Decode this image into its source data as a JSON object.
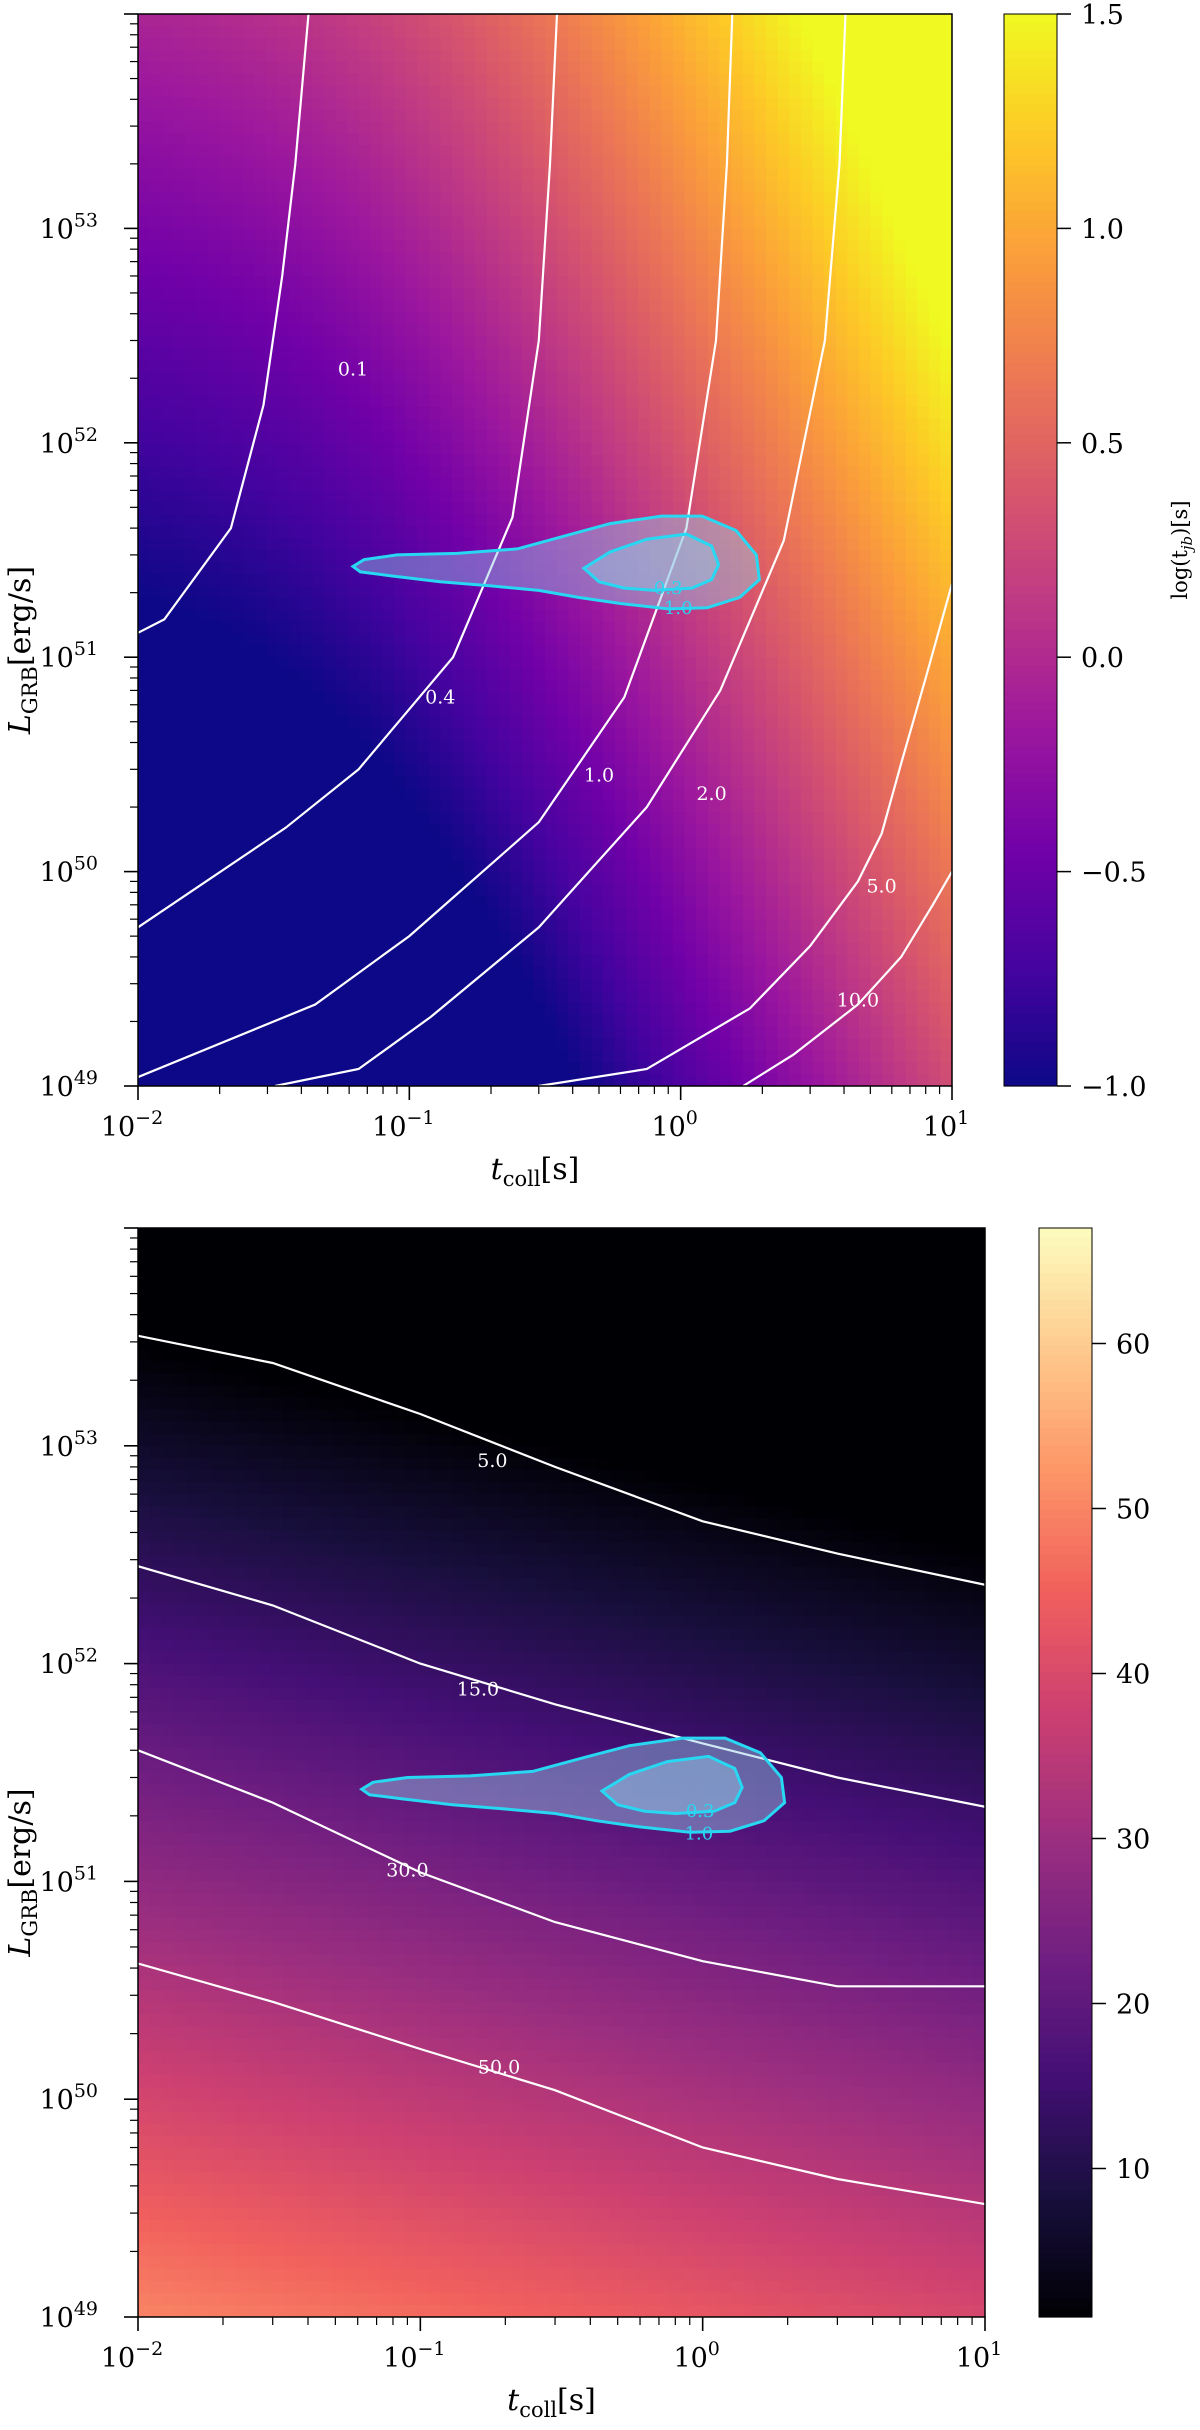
{
  "chart_data": [
    {
      "type": "heatmap",
      "xlabel_main": "t",
      "xlabel_sub": "coll",
      "xlabel_unit": "[s]",
      "ylabel_main": "L",
      "ylabel_sub": "GRB",
      "ylabel_unit": "[erg/s]",
      "x_scale": "log",
      "y_scale": "log",
      "xlim": [
        0.01,
        10
      ],
      "ylim": [
        1e+49,
        1e+54
      ],
      "x_ticks": [
        {
          "exp": "−2",
          "value": 0.01
        },
        {
          "exp": "−1",
          "value": 0.1
        },
        {
          "exp": "0",
          "value": 1
        },
        {
          "exp": "1",
          "value": 10
        }
      ],
      "y_ticks": [
        {
          "exp": "49",
          "value": 1e+49
        },
        {
          "exp": "50",
          "value": 1e+50
        },
        {
          "exp": "51",
          "value": 1e+51
        },
        {
          "exp": "52",
          "value": 1e+52
        },
        {
          "exp": "53",
          "value": 1e+53
        }
      ],
      "tick_base": "10",
      "colormap": "plasma",
      "colormap_stops": [
        "#0d0887",
        "#46039f",
        "#7201a8",
        "#9c179e",
        "#bd3786",
        "#d8576b",
        "#ed7953",
        "#fb9f3a",
        "#fdca26",
        "#f0f921"
      ],
      "colorbar": {
        "label": "log(t_jb)[s]",
        "label_main": "log(t",
        "label_sub": "jb",
        "label_tail": ")[s]",
        "range": [
          -1.0,
          1.5
        ],
        "ticks": [
          {
            "label": "1.5",
            "value": 1.5
          },
          {
            "label": "1.0",
            "value": 1.0
          },
          {
            "label": "0.5",
            "value": 0.5
          },
          {
            "label": "0.0",
            "value": 0.0
          },
          {
            "label": "−0.5",
            "value": -0.5
          },
          {
            "label": "−1.0",
            "value": -1.0
          }
        ]
      },
      "contours": [
        {
          "label": "0.1",
          "label_at": [
            0.062,
            2.2e+52
          ],
          "points": [
            [
              0.0425,
              1e+54
            ],
            [
              0.038,
              2e+53
            ],
            [
              0.034,
              6e+52
            ],
            [
              0.029,
              1.5e+52
            ],
            [
              0.022,
              4e+51
            ],
            [
              0.0125,
              1.5e+51
            ],
            [
              0.01,
              1.3e+51
            ]
          ]
        },
        {
          "label": "0.4",
          "label_at": [
            0.13,
            6.5e+50
          ],
          "points": [
            [
              0.35,
              1e+54
            ],
            [
              0.33,
              2e+53
            ],
            [
              0.3,
              3e+52
            ],
            [
              0.24,
              4.5e+51
            ],
            [
              0.145,
              1e+51
            ],
            [
              0.065,
              3e+50
            ],
            [
              0.035,
              1.6e+50
            ],
            [
              0.01,
              5.5e+49
            ]
          ]
        },
        {
          "label": "1.0",
          "label_at": [
            0.5,
            2.8e+50
          ],
          "points": [
            [
              1.55,
              1e+54
            ],
            [
              1.48,
              2e+53
            ],
            [
              1.35,
              3e+52
            ],
            [
              1.05,
              4e+51
            ],
            [
              0.62,
              6.5e+50
            ],
            [
              0.3,
              1.7e+50
            ],
            [
              0.1,
              5e+49
            ],
            [
              0.045,
              2.4e+49
            ],
            [
              0.01,
              1.1e+49
            ]
          ]
        },
        {
          "label": "2.0",
          "label_at": [
            1.3,
            2.3e+50
          ],
          "points": [
            [
              4.05,
              1e+54
            ],
            [
              3.85,
              2e+53
            ],
            [
              3.4,
              3e+52
            ],
            [
              2.4,
              3.5e+51
            ],
            [
              1.4,
              7e+50
            ],
            [
              0.75,
              2e+50
            ],
            [
              0.3,
              5.5e+49
            ],
            [
              0.12,
              2.1e+49
            ],
            [
              0.065,
              1.2e+49
            ],
            [
              0.032,
              1e+49
            ]
          ]
        },
        {
          "label": "5.0",
          "label_at": [
            5.5,
            8.5e+49
          ],
          "points": [
            [
              10,
              2.2e+51
            ],
            [
              8,
              8e+50
            ],
            [
              6.5,
              3.2e+50
            ],
            [
              5.5,
              1.5e+50
            ],
            [
              4.5,
              9e+49
            ],
            [
              3,
              4.5e+49
            ],
            [
              1.8,
              2.3e+49
            ],
            [
              0.75,
              1.2e+49
            ],
            [
              0.3,
              1e+49
            ]
          ]
        },
        {
          "label": "10.0",
          "label_at": [
            4.5,
            2.5e+49
          ],
          "points": [
            [
              10,
              1e+50
            ],
            [
              8.5,
              7e+49
            ],
            [
              6.5,
              4e+49
            ],
            [
              4.5,
              2.4e+49
            ],
            [
              2.6,
              1.4e+49
            ],
            [
              1.7,
              1e+49
            ]
          ]
        }
      ],
      "region_contours": [
        {
          "label": "0.3",
          "label_at": [
            0.9,
            2.1e+51
          ],
          "points": [
            [
              0.44,
              2.6e+51
            ],
            [
              0.5,
              2.25e+51
            ],
            [
              0.62,
              2.1e+51
            ],
            [
              0.8,
              2.05e+51
            ],
            [
              1.1,
              2.1e+51
            ],
            [
              1.3,
              2.3e+51
            ],
            [
              1.38,
              2.7e+51
            ],
            [
              1.3,
              3.3e+51
            ],
            [
              1.05,
              3.75e+51
            ],
            [
              0.75,
              3.55e+51
            ],
            [
              0.55,
              3.1e+51
            ],
            [
              0.44,
              2.6e+51
            ]
          ]
        },
        {
          "label": "1.0",
          "label_at": [
            0.98,
            1.7e+51
          ],
          "points": [
            [
              0.066,
              2.5e+51
            ],
            [
              0.085,
              2.4e+51
            ],
            [
              0.13,
              2.25e+51
            ],
            [
              0.2,
              2.15e+51
            ],
            [
              0.3,
              2.05e+51
            ],
            [
              0.42,
              1.9e+51
            ],
            [
              0.6,
              1.78e+51
            ],
            [
              0.9,
              1.68e+51
            ],
            [
              1.25,
              1.7e+51
            ],
            [
              1.65,
              1.9e+51
            ],
            [
              1.95,
              2.3e+51
            ],
            [
              1.9,
              3e+51
            ],
            [
              1.6,
              3.9e+51
            ],
            [
              1.2,
              4.55e+51
            ],
            [
              0.85,
              4.55e+51
            ],
            [
              0.55,
              4.2e+51
            ],
            [
              0.38,
              3.7e+51
            ],
            [
              0.25,
              3.2e+51
            ],
            [
              0.15,
              3.05e+51
            ],
            [
              0.09,
              3e+51
            ],
            [
              0.068,
              2.85e+51
            ],
            [
              0.062,
              2.65e+51
            ],
            [
              0.066,
              2.5e+51
            ]
          ]
        }
      ]
    },
    {
      "type": "heatmap",
      "xlabel_main": "t",
      "xlabel_sub": "coll",
      "xlabel_unit": "[s]",
      "ylabel_main": "L",
      "ylabel_sub": "GRB",
      "ylabel_unit": "[erg/s]",
      "x_scale": "log",
      "y_scale": "log",
      "xlim": [
        0.01,
        10
      ],
      "ylim": [
        1e+49,
        1e+54
      ],
      "x_ticks": [
        {
          "exp": "−2",
          "value": 0.01
        },
        {
          "exp": "−1",
          "value": 0.1
        },
        {
          "exp": "0",
          "value": 1
        },
        {
          "exp": "1",
          "value": 10
        }
      ],
      "y_ticks": [
        {
          "exp": "49",
          "value": 1e+49
        },
        {
          "exp": "50",
          "value": 1e+50
        },
        {
          "exp": "51",
          "value": 1e+51
        },
        {
          "exp": "52",
          "value": 1e+52
        },
        {
          "exp": "53",
          "value": 1e+53
        }
      ],
      "tick_base": "10",
      "colormap": "magma",
      "colormap_stops": [
        "#000004",
        "#180f3d",
        "#440f76",
        "#721f81",
        "#9e2f7f",
        "#cd4071",
        "#f1605d",
        "#fd9668",
        "#feca8d",
        "#fcfdbf"
      ],
      "colorbar": {
        "label": "ε_jb[%]",
        "label_main": "ε",
        "label_sub": "jb",
        "label_tail": "[%]",
        "range": [
          1,
          67
        ],
        "ticks": [
          {
            "label": "60",
            "value": 60
          },
          {
            "label": "50",
            "value": 50
          },
          {
            "label": "40",
            "value": 40
          },
          {
            "label": "30",
            "value": 30
          },
          {
            "label": "20",
            "value": 20
          },
          {
            "label": "10",
            "value": 10
          }
        ]
      },
      "contours": [
        {
          "label": "5.0",
          "label_at": [
            0.18,
            8.5e+52
          ],
          "points": [
            [
              0.01,
              3.2e+53
            ],
            [
              0.03,
              2.4e+53
            ],
            [
              0.1,
              1.4e+53
            ],
            [
              0.3,
              8e+52
            ],
            [
              1,
              4.5e+52
            ],
            [
              3,
              3.2e+52
            ],
            [
              10,
              2.3e+52
            ]
          ]
        },
        {
          "label": "15.0",
          "label_at": [
            0.16,
            7.6e+51
          ],
          "points": [
            [
              0.01,
              2.8e+52
            ],
            [
              0.03,
              1.85e+52
            ],
            [
              0.1,
              1e+52
            ],
            [
              0.3,
              6.5e+51
            ],
            [
              1,
              4.3e+51
            ],
            [
              3,
              3e+51
            ],
            [
              10,
              2.2e+51
            ]
          ]
        },
        {
          "label": "30.0",
          "label_at": [
            0.09,
            1.12e+51
          ],
          "points": [
            [
              0.01,
              4e+51
            ],
            [
              0.03,
              2.3e+51
            ],
            [
              0.1,
              1.1e+51
            ],
            [
              0.3,
              6.5e+50
            ],
            [
              1,
              4.3e+50
            ],
            [
              3,
              3.3e+50
            ],
            [
              10,
              3.3e+50
            ]
          ]
        },
        {
          "label": "50.0",
          "label_at": [
            0.19,
            1.4e+50
          ],
          "points": [
            [
              0.01,
              4.2e+50
            ],
            [
              0.03,
              2.8e+50
            ],
            [
              0.1,
              1.7e+50
            ],
            [
              0.3,
              1.1e+50
            ],
            [
              1,
              6e+49
            ],
            [
              3,
              4.3e+49
            ],
            [
              10,
              3.3e+49
            ]
          ]
        }
      ],
      "region_contours": [
        {
          "label": "0.3",
          "label_at": [
            0.98,
            2.1e+51
          ],
          "points": [
            [
              0.44,
              2.6e+51
            ],
            [
              0.5,
              2.25e+51
            ],
            [
              0.62,
              2.1e+51
            ],
            [
              0.8,
              2.05e+51
            ],
            [
              1.1,
              2.1e+51
            ],
            [
              1.3,
              2.3e+51
            ],
            [
              1.38,
              2.7e+51
            ],
            [
              1.3,
              3.3e+51
            ],
            [
              1.05,
              3.75e+51
            ],
            [
              0.75,
              3.55e+51
            ],
            [
              0.55,
              3.1e+51
            ],
            [
              0.44,
              2.6e+51
            ]
          ]
        },
        {
          "label": "1.0",
          "label_at": [
            0.97,
            1.66e+51
          ],
          "points": [
            [
              0.066,
              2.5e+51
            ],
            [
              0.085,
              2.4e+51
            ],
            [
              0.13,
              2.25e+51
            ],
            [
              0.2,
              2.15e+51
            ],
            [
              0.3,
              2.05e+51
            ],
            [
              0.42,
              1.9e+51
            ],
            [
              0.6,
              1.78e+51
            ],
            [
              0.9,
              1.68e+51
            ],
            [
              1.25,
              1.7e+51
            ],
            [
              1.65,
              1.9e+51
            ],
            [
              1.95,
              2.3e+51
            ],
            [
              1.9,
              3e+51
            ],
            [
              1.6,
              3.9e+51
            ],
            [
              1.2,
              4.55e+51
            ],
            [
              0.85,
              4.55e+51
            ],
            [
              0.55,
              4.2e+51
            ],
            [
              0.38,
              3.7e+51
            ],
            [
              0.25,
              3.2e+51
            ],
            [
              0.15,
              3.05e+51
            ],
            [
              0.09,
              3e+51
            ],
            [
              0.068,
              2.85e+51
            ],
            [
              0.062,
              2.65e+51
            ],
            [
              0.066,
              2.5e+51
            ]
          ]
        }
      ]
    }
  ]
}
